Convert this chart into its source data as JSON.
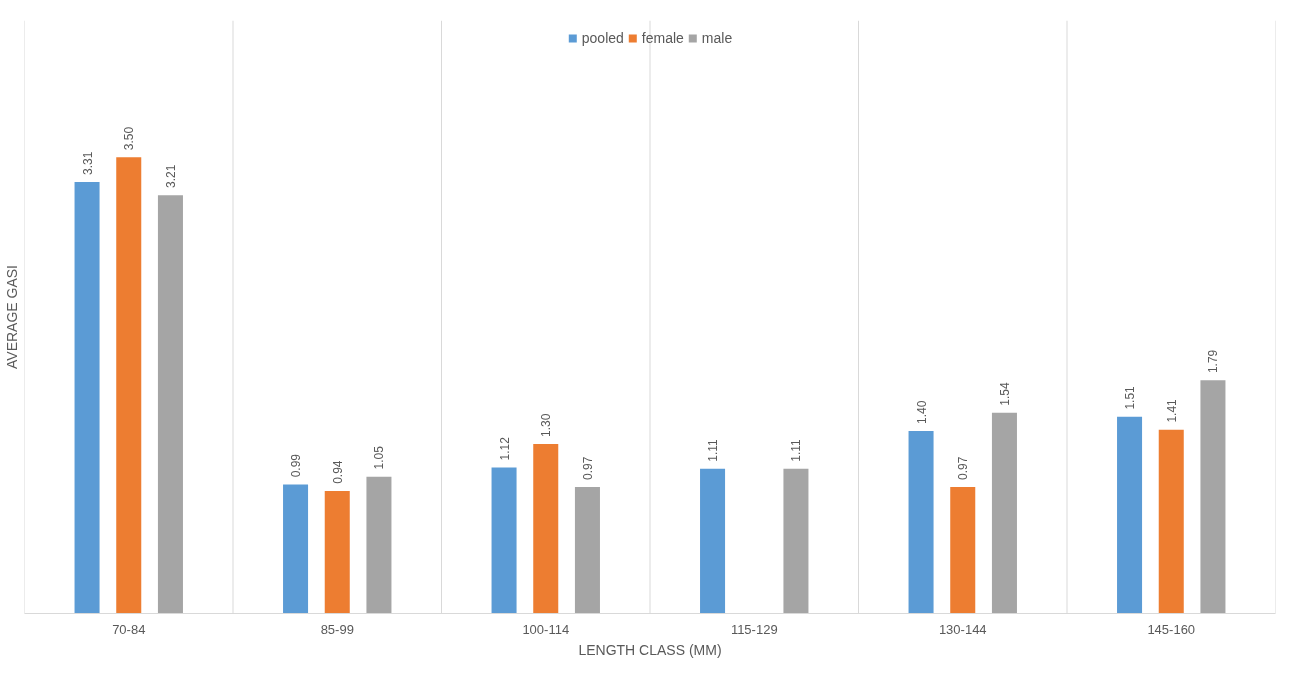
{
  "chart_data": {
    "type": "bar",
    "xlabel": "LENGTH CLASS (MM)",
    "ylabel": "AVERAGE GASI",
    "categories": [
      "70-84",
      "85-99",
      "100-114",
      "115-129",
      "130-144",
      "145-160"
    ],
    "series": [
      {
        "name": "pooled",
        "color": "#5b9bd5",
        "values": [
          3.31,
          0.99,
          1.12,
          1.11,
          1.4,
          1.51
        ],
        "value_labels": [
          "3.31",
          "0.99",
          "1.12",
          "1.11",
          "1.40",
          "1.51"
        ]
      },
      {
        "name": "female",
        "color": "#ed7d31",
        "values": [
          3.5,
          0.94,
          1.3,
          null,
          0.97,
          1.41
        ],
        "value_labels": [
          "3.50",
          "0.94",
          "1.30",
          null,
          "0.97",
          "1.41"
        ]
      },
      {
        "name": "male",
        "color": "#a5a5a5",
        "values": [
          3.21,
          1.05,
          0.97,
          1.11,
          1.54,
          1.79
        ],
        "value_labels": [
          "3.21",
          "1.05",
          "0.97",
          "1.11",
          "1.54",
          "1.79"
        ]
      }
    ],
    "legend": "top",
    "grid": "x"
  }
}
